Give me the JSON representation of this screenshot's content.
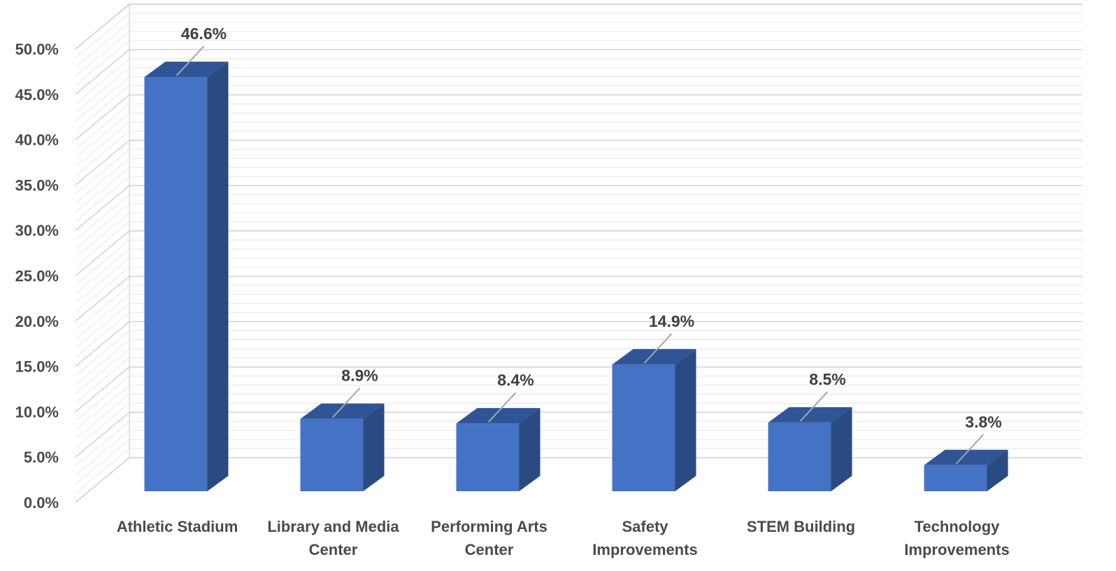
{
  "chart_data": {
    "type": "bar",
    "style": "3d-clustered-column",
    "categories": [
      "Athletic Stadium",
      "Library and Media Center",
      "Performing Arts Center",
      "Safety Improvements",
      "STEM Building",
      "Technology Improvements"
    ],
    "category_lines": [
      [
        "Athletic Stadium"
      ],
      [
        "Library and Media",
        "Center"
      ],
      [
        "Performing Arts",
        "Center"
      ],
      [
        "Safety",
        "Improvements"
      ],
      [
        "STEM Building"
      ],
      [
        "Technology",
        "Improvements"
      ]
    ],
    "values": [
      46.6,
      8.9,
      8.4,
      14.9,
      8.5,
      3.8
    ],
    "data_labels": [
      "46.6%",
      "8.9%",
      "8.4%",
      "14.9%",
      "8.5%",
      "3.8%"
    ],
    "y_ticks": [
      "0.0%",
      "5.0%",
      "10.0%",
      "15.0%",
      "20.0%",
      "25.0%",
      "30.0%",
      "35.0%",
      "40.0%",
      "45.0%",
      "50.0%"
    ],
    "ylim": [
      0,
      50
    ],
    "title": "",
    "xlabel": "",
    "ylabel": "",
    "grid": true,
    "legend": "none",
    "colors": {
      "bar_front": "#4472C4",
      "bar_top": "#2F5597",
      "bar_side": "#2A4A82",
      "grid": "#d9d9d9",
      "text": "#4a4a4a",
      "leader_line": "#a6a6a6"
    }
  }
}
